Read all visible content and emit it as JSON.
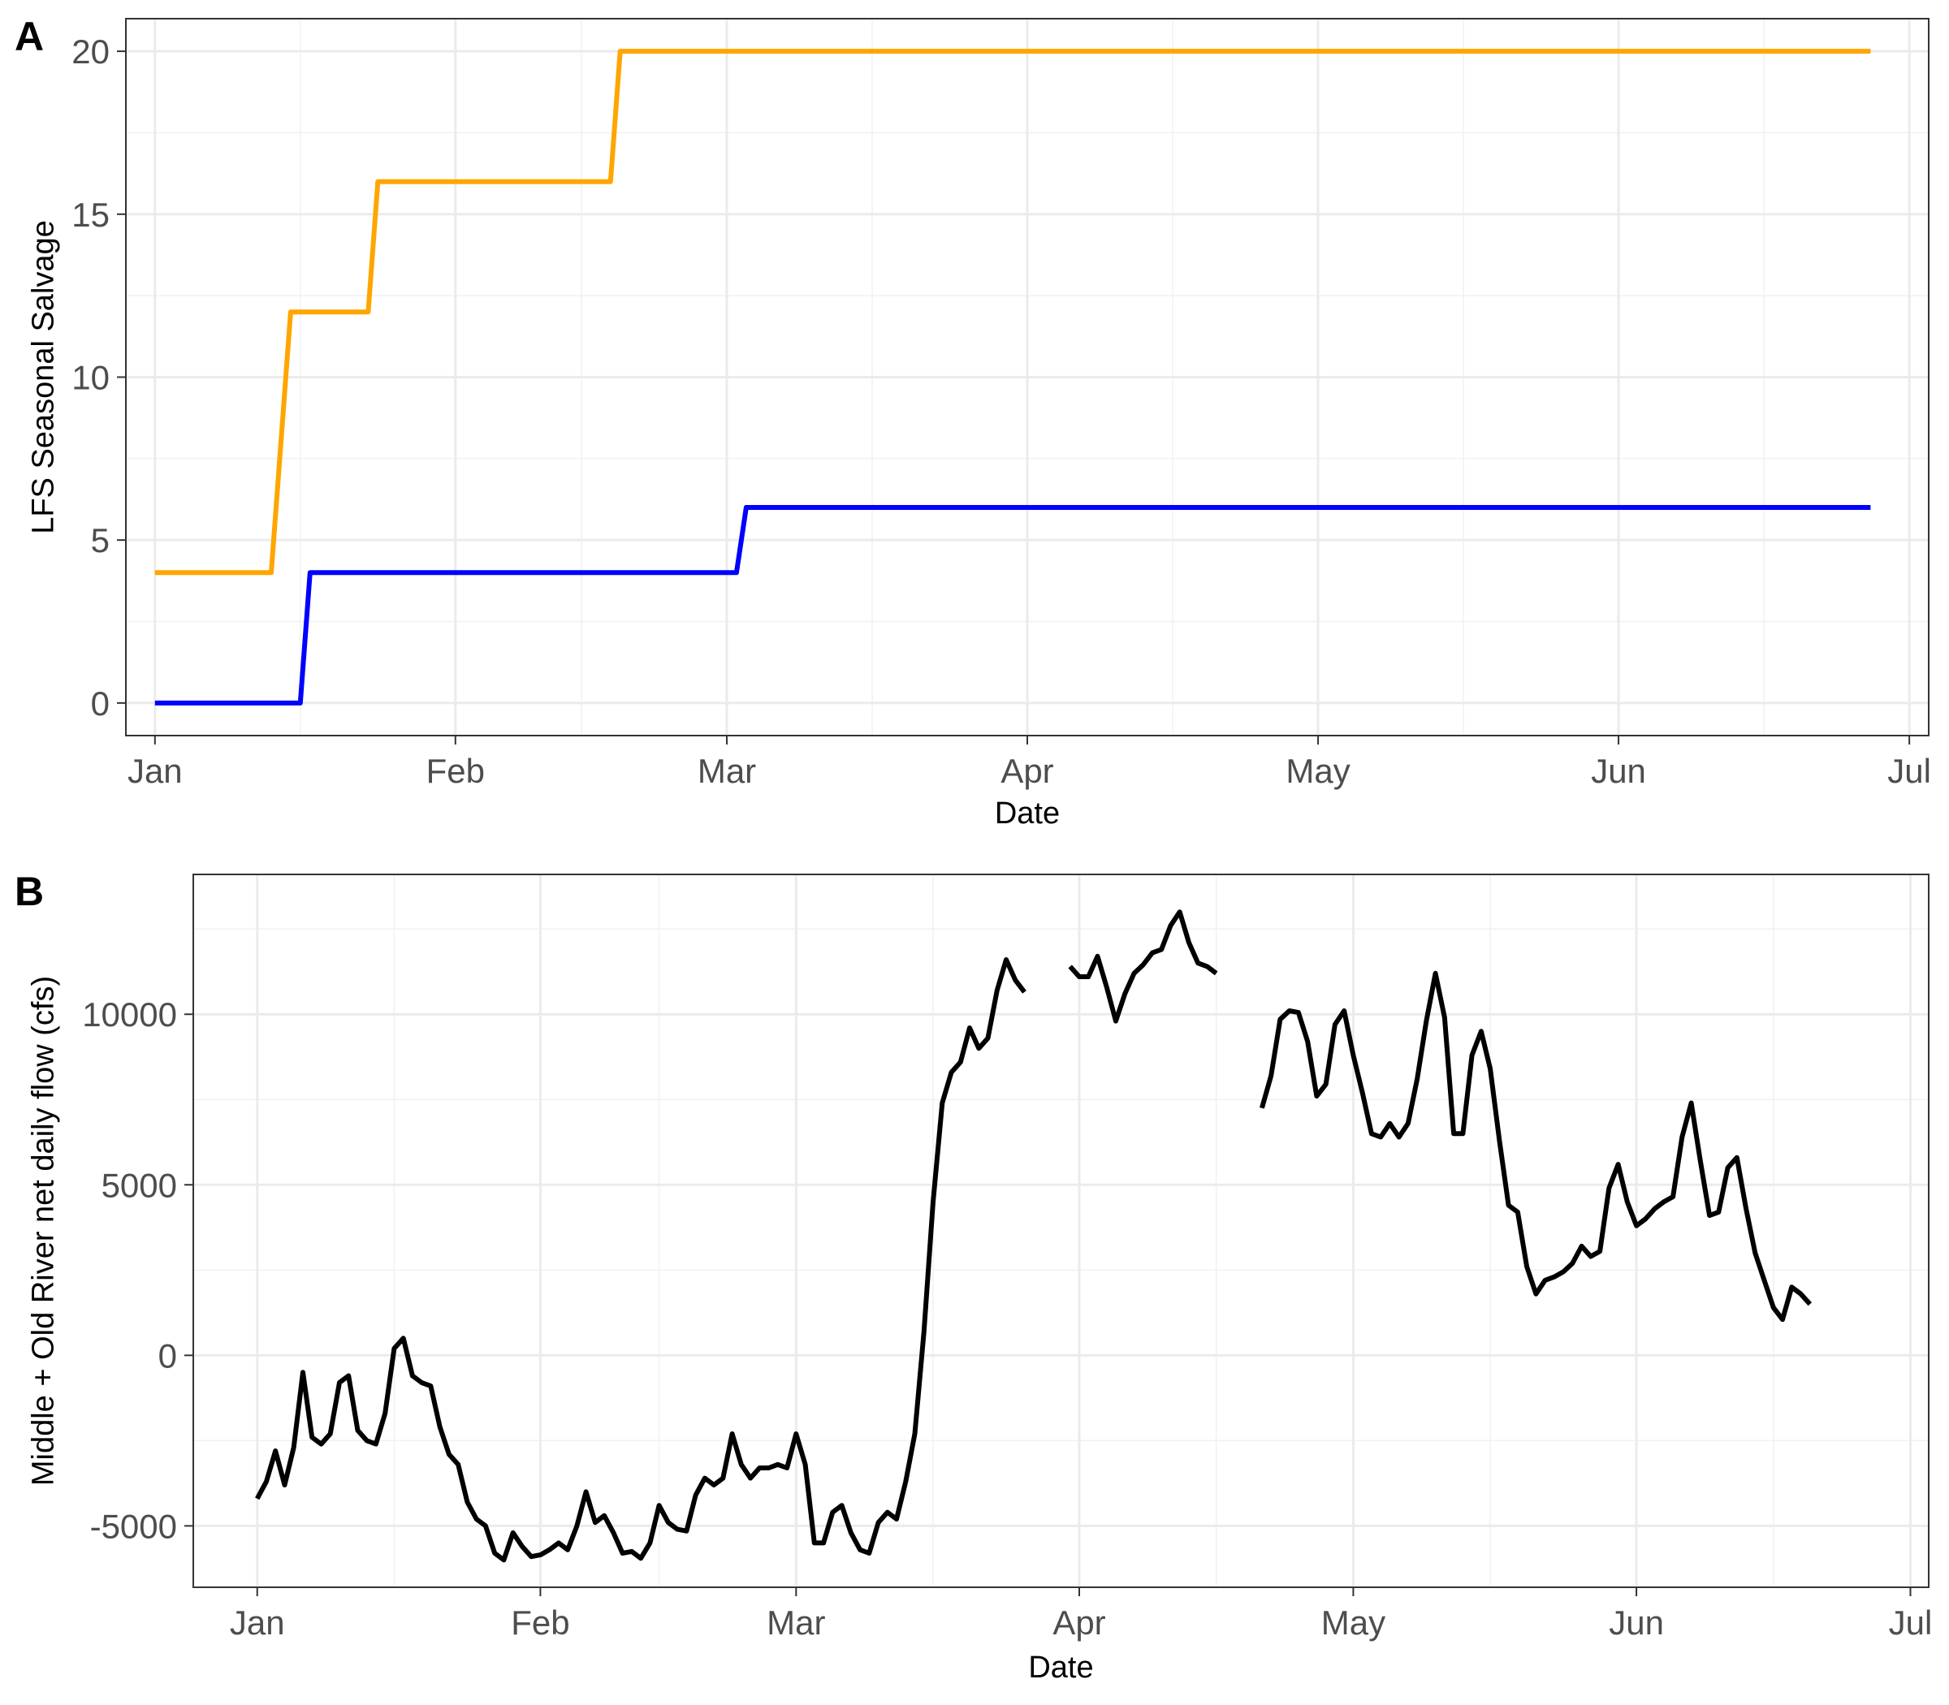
{
  "chart_data": [
    {
      "panel": "A",
      "type": "line",
      "xlabel": "Date",
      "ylabel": "LFS Seasonal Salvage",
      "x_ticks": [
        "Jan",
        "Feb",
        "Mar",
        "Apr",
        "May",
        "Jun",
        "Jul"
      ],
      "y_ticks": [
        "0",
        "5",
        "10",
        "15",
        "20"
      ],
      "xlim": [
        "2024-12-29",
        "2025-07-03"
      ],
      "ylim": [
        -1,
        21
      ],
      "grid": true,
      "series": [
        {
          "color": "#FFA500",
          "points": [
            [
              "2025-01-01",
              4
            ],
            [
              "2025-01-13",
              4
            ],
            [
              "2025-01-15",
              12
            ],
            [
              "2025-01-23",
              12
            ],
            [
              "2025-01-24",
              16
            ],
            [
              "2025-02-17",
              16
            ],
            [
              "2025-02-18",
              20
            ],
            [
              "2025-06-27",
              20
            ]
          ]
        },
        {
          "color": "#0000FF",
          "points": [
            [
              "2025-01-01",
              0
            ],
            [
              "2025-01-16",
              0
            ],
            [
              "2025-01-17",
              4
            ],
            [
              "2025-03-02",
              4
            ],
            [
              "2025-03-03",
              6
            ],
            [
              "2025-06-27",
              6
            ]
          ]
        }
      ]
    },
    {
      "panel": "B",
      "type": "line",
      "xlabel": "Date",
      "ylabel": "Middle + Old River net daily flow (cfs)",
      "x_ticks": [
        "Jan",
        "Feb",
        "Mar",
        "Apr",
        "May",
        "Jun",
        "Jul"
      ],
      "y_ticks": [
        "-5000",
        "0",
        "5000",
        "10000"
      ],
      "xlim": [
        "2024-12-25",
        "2025-07-03"
      ],
      "ylim": [
        -6800,
        14100
      ],
      "grid": true,
      "series": [
        {
          "color": "#000000",
          "segments": [
            [
              [
                "2025-01-01",
                -4200
              ],
              [
                "2025-01-02",
                -3700
              ],
              [
                "2025-01-03",
                -2800
              ],
              [
                "2025-01-04",
                -3800
              ],
              [
                "2025-01-05",
                -2700
              ],
              [
                "2025-01-06",
                -500
              ],
              [
                "2025-01-07",
                -2400
              ],
              [
                "2025-01-08",
                -2600
              ],
              [
                "2025-01-09",
                -2300
              ],
              [
                "2025-01-10",
                -800
              ],
              [
                "2025-01-11",
                -600
              ],
              [
                "2025-01-12",
                -2200
              ],
              [
                "2025-01-13",
                -2500
              ],
              [
                "2025-01-14",
                -2600
              ],
              [
                "2025-01-15",
                -1700
              ],
              [
                "2025-01-16",
                200
              ],
              [
                "2025-01-17",
                500
              ],
              [
                "2025-01-18",
                -600
              ],
              [
                "2025-01-19",
                -800
              ],
              [
                "2025-01-20",
                -900
              ],
              [
                "2025-01-21",
                -2100
              ],
              [
                "2025-01-22",
                -2900
              ],
              [
                "2025-01-23",
                -3200
              ],
              [
                "2025-01-24",
                -4300
              ],
              [
                "2025-01-25",
                -4800
              ],
              [
                "2025-01-26",
                -5000
              ],
              [
                "2025-01-27",
                -5800
              ],
              [
                "2025-01-28",
                -6000
              ],
              [
                "2025-01-29",
                -5200
              ],
              [
                "2025-01-30",
                -5600
              ],
              [
                "2025-01-31",
                -5900
              ],
              [
                "2025-02-01",
                -5850
              ],
              [
                "2025-02-02",
                -5700
              ],
              [
                "2025-02-03",
                -5500
              ],
              [
                "2025-02-04",
                -5700
              ],
              [
                "2025-02-05",
                -5000
              ],
              [
                "2025-02-06",
                -4000
              ],
              [
                "2025-02-07",
                -4900
              ],
              [
                "2025-02-08",
                -4700
              ],
              [
                "2025-02-09",
                -5200
              ],
              [
                "2025-02-10",
                -5800
              ],
              [
                "2025-02-11",
                -5750
              ],
              [
                "2025-02-12",
                -5950
              ],
              [
                "2025-02-13",
                -5500
              ],
              [
                "2025-02-14",
                -4400
              ],
              [
                "2025-02-15",
                -4900
              ],
              [
                "2025-02-16",
                -5100
              ],
              [
                "2025-02-17",
                -5150
              ],
              [
                "2025-02-18",
                -4100
              ],
              [
                "2025-02-19",
                -3600
              ],
              [
                "2025-02-20",
                -3800
              ],
              [
                "2025-02-21",
                -3600
              ],
              [
                "2025-02-22",
                -2300
              ],
              [
                "2025-02-23",
                -3200
              ],
              [
                "2025-02-24",
                -3600
              ],
              [
                "2025-02-25",
                -3300
              ],
              [
                "2025-02-26",
                -3300
              ],
              [
                "2025-02-27",
                -3200
              ],
              [
                "2025-02-28",
                -3300
              ],
              [
                "2025-03-01",
                -2300
              ],
              [
                "2025-03-02",
                -3200
              ],
              [
                "2025-03-03",
                -5500
              ],
              [
                "2025-03-04",
                -5500
              ],
              [
                "2025-03-05",
                -4600
              ],
              [
                "2025-03-06",
                -4400
              ],
              [
                "2025-03-07",
                -5200
              ],
              [
                "2025-03-08",
                -5700
              ],
              [
                "2025-03-09",
                -5800
              ],
              [
                "2025-03-10",
                -4900
              ],
              [
                "2025-03-11",
                -4600
              ],
              [
                "2025-03-12",
                -4800
              ],
              [
                "2025-03-13",
                -3700
              ],
              [
                "2025-03-14",
                -2300
              ],
              [
                "2025-03-15",
                700
              ],
              [
                "2025-03-16",
                4500
              ],
              [
                "2025-03-17",
                7400
              ],
              [
                "2025-03-18",
                8300
              ],
              [
                "2025-03-19",
                8600
              ],
              [
                "2025-03-20",
                9600
              ],
              [
                "2025-03-21",
                9000
              ],
              [
                "2025-03-22",
                9300
              ],
              [
                "2025-03-23",
                10700
              ],
              [
                "2025-03-24",
                11600
              ],
              [
                "2025-03-25",
                11000
              ],
              [
                "2025-03-26",
                10650
              ]
            ],
            [
              [
                "2025-03-31",
                11400
              ],
              [
                "2025-04-01",
                11100
              ],
              [
                "2025-04-02",
                11100
              ],
              [
                "2025-04-03",
                11700
              ],
              [
                "2025-04-04",
                10800
              ],
              [
                "2025-04-05",
                9800
              ],
              [
                "2025-04-06",
                10600
              ],
              [
                "2025-04-07",
                11200
              ],
              [
                "2025-04-08",
                11450
              ],
              [
                "2025-04-09",
                11800
              ],
              [
                "2025-04-10",
                11900
              ],
              [
                "2025-04-11",
                12600
              ],
              [
                "2025-04-12",
                13000
              ],
              [
                "2025-04-13",
                12100
              ],
              [
                "2025-04-14",
                11500
              ],
              [
                "2025-04-15",
                11400
              ],
              [
                "2025-04-16",
                11200
              ]
            ],
            [
              [
                "2025-04-21",
                7250
              ],
              [
                "2025-04-22",
                8200
              ],
              [
                "2025-04-23",
                9850
              ],
              [
                "2025-04-24",
                10100
              ],
              [
                "2025-04-25",
                10050
              ],
              [
                "2025-04-26",
                9200
              ],
              [
                "2025-04-27",
                7600
              ],
              [
                "2025-04-28",
                7950
              ],
              [
                "2025-04-29",
                9700
              ],
              [
                "2025-04-30",
                10100
              ],
              [
                "2025-05-01",
                8800
              ],
              [
                "2025-05-02",
                7700
              ],
              [
                "2025-05-03",
                6500
              ],
              [
                "2025-05-04",
                6400
              ],
              [
                "2025-05-05",
                6800
              ],
              [
                "2025-05-06",
                6400
              ],
              [
                "2025-05-07",
                6800
              ],
              [
                "2025-05-08",
                8100
              ],
              [
                "2025-05-09",
                9800
              ],
              [
                "2025-05-10",
                11200
              ],
              [
                "2025-05-11",
                9900
              ],
              [
                "2025-05-12",
                6500
              ],
              [
                "2025-05-13",
                6500
              ],
              [
                "2025-05-14",
                8800
              ],
              [
                "2025-05-15",
                9500
              ],
              [
                "2025-05-16",
                8400
              ],
              [
                "2025-05-17",
                6300
              ],
              [
                "2025-05-18",
                4400
              ],
              [
                "2025-05-19",
                4200
              ],
              [
                "2025-05-20",
                2600
              ],
              [
                "2025-05-21",
                1800
              ],
              [
                "2025-05-22",
                2200
              ],
              [
                "2025-05-23",
                2300
              ],
              [
                "2025-05-24",
                2450
              ],
              [
                "2025-05-25",
                2700
              ],
              [
                "2025-05-26",
                3200
              ],
              [
                "2025-05-27",
                2900
              ],
              [
                "2025-05-28",
                3050
              ],
              [
                "2025-05-29",
                4900
              ],
              [
                "2025-05-30",
                5600
              ],
              [
                "2025-05-31",
                4500
              ],
              [
                "2025-06-01",
                3800
              ],
              [
                "2025-06-02",
                4000
              ],
              [
                "2025-06-03",
                4300
              ],
              [
                "2025-06-04",
                4500
              ],
              [
                "2025-06-05",
                4650
              ],
              [
                "2025-06-06",
                6400
              ],
              [
                "2025-06-07",
                7400
              ],
              [
                "2025-06-08",
                5700
              ],
              [
                "2025-06-09",
                4100
              ],
              [
                "2025-06-10",
                4200
              ],
              [
                "2025-06-11",
                5500
              ],
              [
                "2025-06-12",
                5800
              ],
              [
                "2025-06-13",
                4300
              ],
              [
                "2025-06-14",
                3000
              ],
              [
                "2025-06-15",
                2200
              ],
              [
                "2025-06-16",
                1400
              ],
              [
                "2025-06-17",
                1050
              ],
              [
                "2025-06-18",
                2000
              ],
              [
                "2025-06-19",
                1800
              ],
              [
                "2025-06-20",
                1500
              ]
            ]
          ]
        }
      ]
    }
  ]
}
